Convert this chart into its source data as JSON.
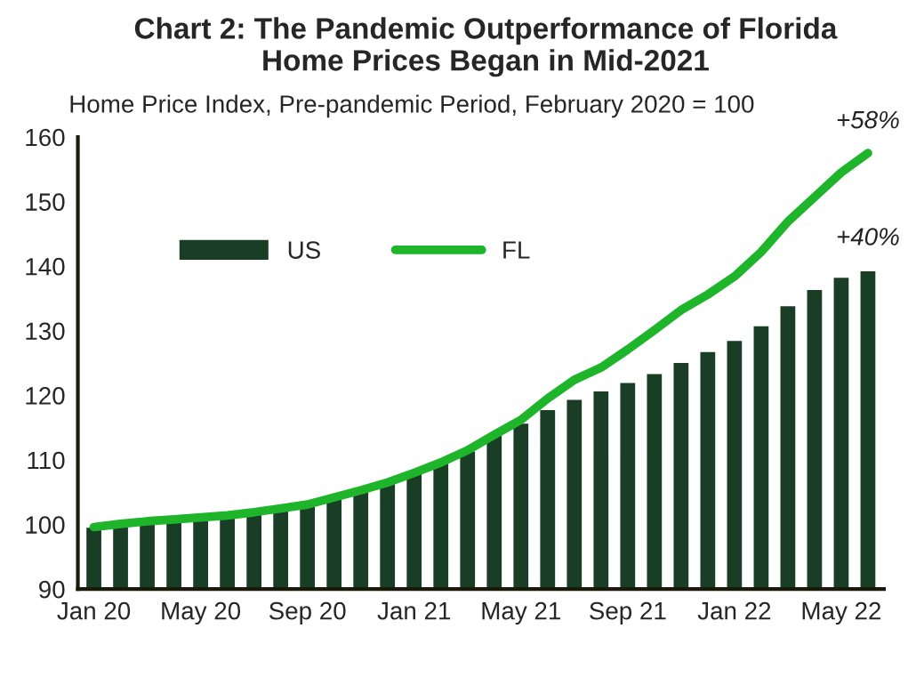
{
  "chart_data": {
    "type": "bar",
    "title": "Chart 2: The Pandemic Outperformance of Florida\nHome Prices Began in Mid-2021",
    "subtitle": "Home Price Index, Pre-pandemic Period, February 2020 = 100",
    "categories": [
      "Jan 20",
      null,
      null,
      null,
      "May 20",
      null,
      null,
      null,
      "Sep 20",
      null,
      null,
      null,
      "Jan 21",
      null,
      null,
      null,
      "May 21",
      null,
      null,
      null,
      "Sep 21",
      null,
      null,
      null,
      "Jan 22",
      null,
      null,
      null,
      "May 22",
      null
    ],
    "series": [
      {
        "name": "US",
        "color": "#1a3d26",
        "values": [
          99.7,
          99.9,
          100.2,
          100.6,
          101.0,
          101.3,
          101.7,
          102.4,
          103.2,
          104.3,
          105.4,
          107.0,
          108.3,
          109.8,
          111.5,
          113.9,
          115.8,
          117.9,
          119.5,
          120.8,
          122.1,
          123.5,
          125.2,
          126.9,
          128.6,
          130.9,
          134.0,
          136.5,
          138.4,
          139.4
        ]
      },
      {
        "name": "FL",
        "type": "line",
        "color": "#1fb52a",
        "values": [
          99.6,
          100.1,
          100.5,
          100.8,
          101.1,
          101.4,
          101.9,
          102.5,
          103.1,
          104.2,
          105.3,
          106.5,
          108.0,
          109.6,
          111.5,
          113.9,
          116.2,
          119.5,
          122.4,
          124.3,
          127.1,
          130.1,
          133.2,
          135.6,
          138.4,
          142.2,
          146.9,
          150.7,
          154.5,
          157.5
        ]
      }
    ],
    "annotations": [
      {
        "text": "+58%",
        "y": 157.5
      },
      {
        "text": "+40%",
        "y": 139.4
      }
    ],
    "ylim": [
      90,
      160
    ],
    "yticks": [
      90,
      100,
      110,
      120,
      130,
      140,
      150,
      160
    ],
    "grid": false,
    "legend": "top left",
    "line_style": "solid",
    "marker": "none"
  }
}
